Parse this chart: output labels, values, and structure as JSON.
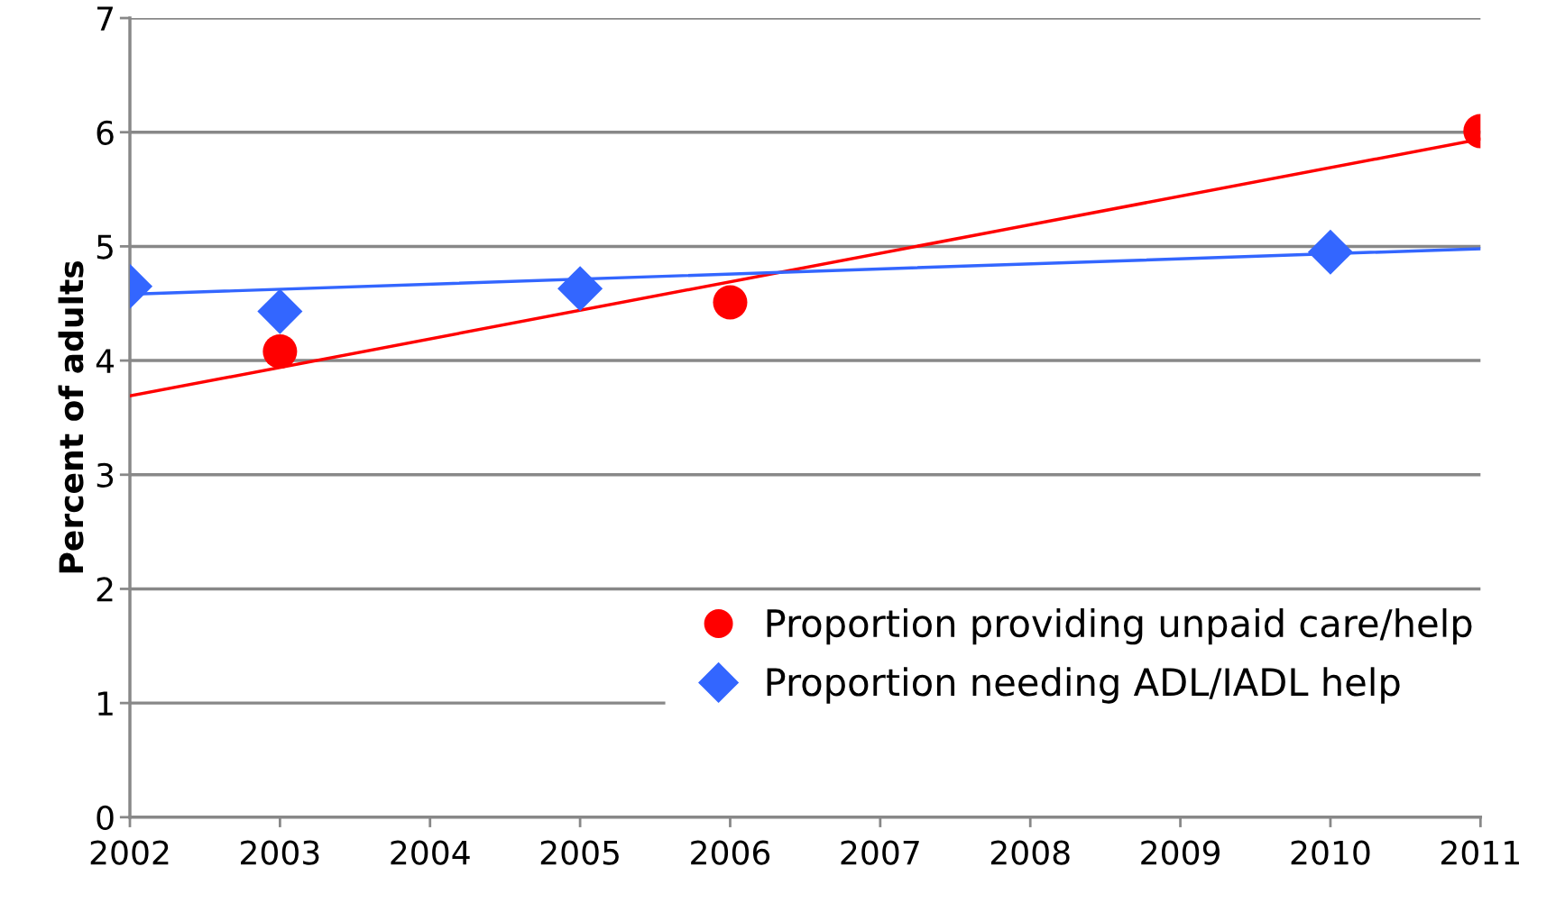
{
  "chart_data": {
    "type": "scatter",
    "ylabel": "Percent of adults",
    "series": [
      {
        "name": "Proportion providing unpaid care/help",
        "color": "#ff0000",
        "marker": "circle",
        "x": [
          2003,
          2006,
          2011
        ],
        "values": [
          4.08,
          4.51,
          6.01
        ]
      },
      {
        "name": "Proportion needing ADL/IADL help",
        "color": "#3366ff",
        "marker": "diamond",
        "x": [
          2002,
          2003,
          2005,
          2010
        ],
        "values": [
          4.65,
          4.43,
          4.63,
          4.95
        ]
      },
      {
        "type": "line",
        "color": "#ff0000",
        "marker": "none",
        "x": [
          2002,
          2011
        ],
        "values": [
          3.69,
          5.94
        ]
      },
      {
        "type": "line",
        "color": "#3366ff",
        "marker": "none",
        "x": [
          2002,
          2011
        ],
        "values": [
          4.58,
          4.98
        ]
      }
    ],
    "xlim": [
      2002,
      2011
    ],
    "xticks": [
      2002,
      2003,
      2004,
      2005,
      2006,
      2007,
      2008,
      2009,
      2010,
      2011
    ],
    "ylim": [
      0,
      7
    ],
    "yticks": [
      0,
      1,
      2,
      3,
      4,
      5,
      6,
      7
    ],
    "grid": "y",
    "legend": "bottom right"
  }
}
